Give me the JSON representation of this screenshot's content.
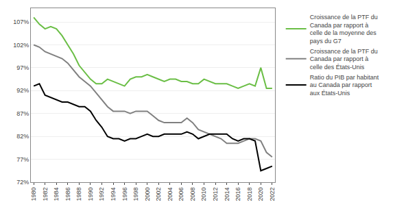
{
  "chart_data": {
    "type": "line",
    "x": [
      1980,
      1981,
      1982,
      1983,
      1984,
      1985,
      1986,
      1987,
      1988,
      1989,
      1990,
      1991,
      1992,
      1993,
      1994,
      1995,
      1996,
      1997,
      1998,
      1999,
      2000,
      2001,
      2002,
      2003,
      2004,
      2005,
      2006,
      2007,
      2008,
      2009,
      2010,
      2011,
      2012,
      2013,
      2014,
      2015,
      2016,
      2017,
      2018,
      2019,
      2020,
      2021,
      2022
    ],
    "series": [
      {
        "name": "Croissance de la PTF du\nCanada par rapport à\ncelle de la moyenne des\npays du G7",
        "color": "#6abe45",
        "values": [
          108.0,
          106.5,
          105.5,
          106.0,
          105.5,
          104.0,
          102.0,
          100.0,
          97.5,
          96.0,
          94.5,
          93.5,
          93.5,
          94.5,
          94.0,
          93.5,
          93.0,
          94.5,
          95.0,
          95.0,
          95.5,
          95.0,
          94.5,
          94.0,
          94.5,
          94.5,
          94.0,
          94.0,
          93.5,
          93.5,
          94.5,
          94.0,
          93.5,
          93.5,
          93.5,
          93.0,
          92.5,
          93.0,
          93.5,
          93.0,
          97.0,
          92.5,
          92.5
        ]
      },
      {
        "name": "Croissance de la PTF du\nCanada par rapport à\ncelle des États-Unis",
        "color": "#808080",
        "values": [
          102.0,
          101.5,
          100.5,
          100.0,
          99.5,
          99.0,
          98.0,
          96.5,
          95.0,
          94.0,
          93.0,
          91.5,
          90.0,
          88.5,
          87.5,
          87.5,
          87.5,
          87.0,
          87.5,
          87.5,
          87.5,
          86.5,
          85.5,
          85.0,
          85.0,
          85.0,
          85.0,
          86.0,
          85.0,
          83.5,
          83.0,
          82.5,
          82.0,
          81.5,
          80.5,
          80.5,
          80.5,
          81.0,
          81.5,
          81.5,
          81.0,
          78.5,
          77.5
        ]
      },
      {
        "name": "Ratio du PIB par habitant\nau Canada par rapport\naux États-Unis",
        "color": "#000000",
        "values": [
          93.0,
          93.5,
          91.0,
          90.5,
          90.0,
          89.5,
          89.5,
          89.0,
          88.5,
          88.5,
          87.5,
          85.5,
          84.0,
          82.0,
          81.5,
          81.5,
          81.0,
          81.5,
          81.5,
          82.0,
          82.5,
          82.0,
          82.0,
          82.5,
          82.5,
          82.5,
          82.5,
          83.0,
          82.5,
          81.5,
          82.0,
          82.5,
          82.5,
          82.5,
          82.5,
          81.5,
          81.0,
          81.5,
          81.5,
          81.0,
          74.5,
          75.0,
          75.5
        ]
      }
    ],
    "xlim": [
      1979.5,
      2022.5
    ],
    "xticks": [
      1980,
      1982,
      1984,
      1986,
      1988,
      1990,
      1992,
      1994,
      1996,
      1998,
      2000,
      2002,
      2004,
      2006,
      2008,
      2010,
      2012,
      2014,
      2016,
      2018,
      2020,
      2022
    ],
    "ylim": [
      72,
      110
    ],
    "yticks": [
      {
        "value": 72,
        "label": "72%"
      },
      {
        "value": 77,
        "label": "77%"
      },
      {
        "value": 82,
        "label": "82%"
      },
      {
        "value": 87,
        "label": "87%"
      },
      {
        "value": 92,
        "label": "92%"
      },
      {
        "value": 97,
        "label": "97%"
      },
      {
        "value": 102,
        "label": "102%"
      },
      {
        "value": 107,
        "label": "107%"
      }
    ],
    "grid": "y",
    "legend": "right"
  }
}
